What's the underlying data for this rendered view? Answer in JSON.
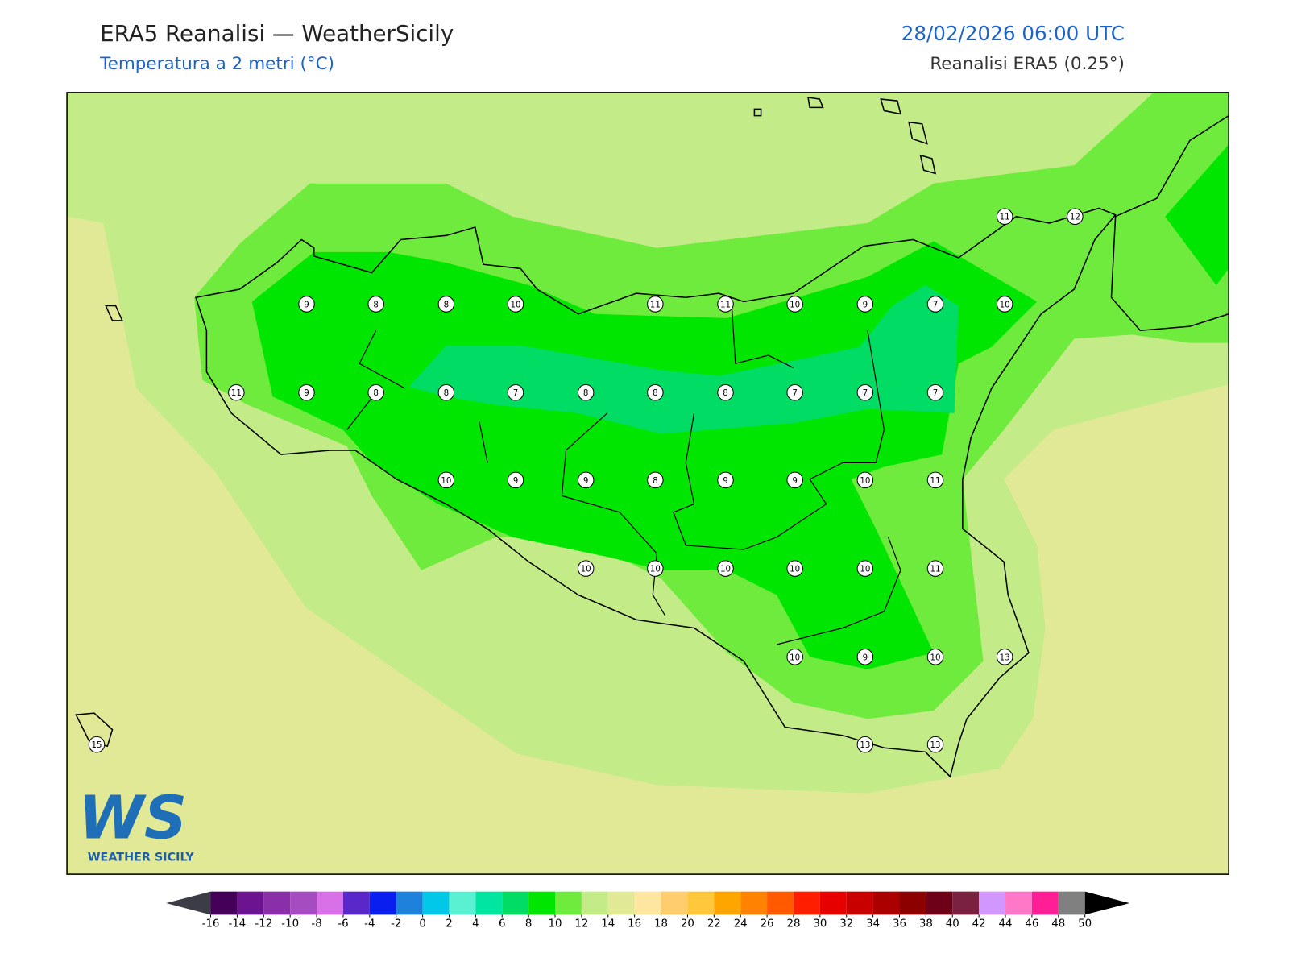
{
  "header": {
    "title": "ERA5 Reanalisi — WeatherSicily",
    "subtitle": "Temperatura a 2 metri (°C)",
    "date": "28/02/2026 06:00 UTC",
    "source": "Reanalisi ERA5 (0.25°)"
  },
  "stations": [
    9,
    8,
    8,
    10,
    11,
    11,
    10,
    9,
    7,
    10,
    11,
    12,
    11,
    9,
    8,
    8,
    7,
    8,
    8,
    8,
    7,
    7,
    7,
    10,
    9,
    9,
    8,
    9,
    9,
    10,
    11,
    10,
    10,
    10,
    10,
    10,
    11,
    10,
    9,
    10,
    13,
    15,
    13,
    13
  ],
  "logo": {
    "mark": "WS",
    "text": "WEATHER SICILY"
  },
  "colorbar": {
    "ticks": [
      -16,
      -14,
      -12,
      -10,
      -8,
      -6,
      -4,
      -2,
      0,
      2,
      4,
      6,
      8,
      10,
      12,
      14,
      16,
      18,
      20,
      22,
      24,
      26,
      28,
      30,
      32,
      34,
      36,
      38,
      40,
      42,
      44,
      46,
      48,
      50
    ],
    "colors": [
      "#45005a",
      "#6c1490",
      "#8a2fa8",
      "#a44cc0",
      "#d870e8",
      "#5a28c8",
      "#0a1ef0",
      "#1e82dc",
      "#00c8e6",
      "#5af0d2",
      "#00e6a0",
      "#00dc64",
      "#00e600",
      "#6eeb3c",
      "#c3eb87",
      "#e1e996",
      "#ffe6a0",
      "#ffcd6e",
      "#ffc83c",
      "#ffa500",
      "#ff8200",
      "#ff5a00",
      "#ff1e00",
      "#e60000",
      "#c80000",
      "#aa0000",
      "#8c0000",
      "#6e0018",
      "#7a2040",
      "#d296ff",
      "#ff78c8",
      "#ff1e96",
      "#808080",
      "#3c3c3c"
    ],
    "under": "#3c3c46",
    "over": "#000000"
  }
}
